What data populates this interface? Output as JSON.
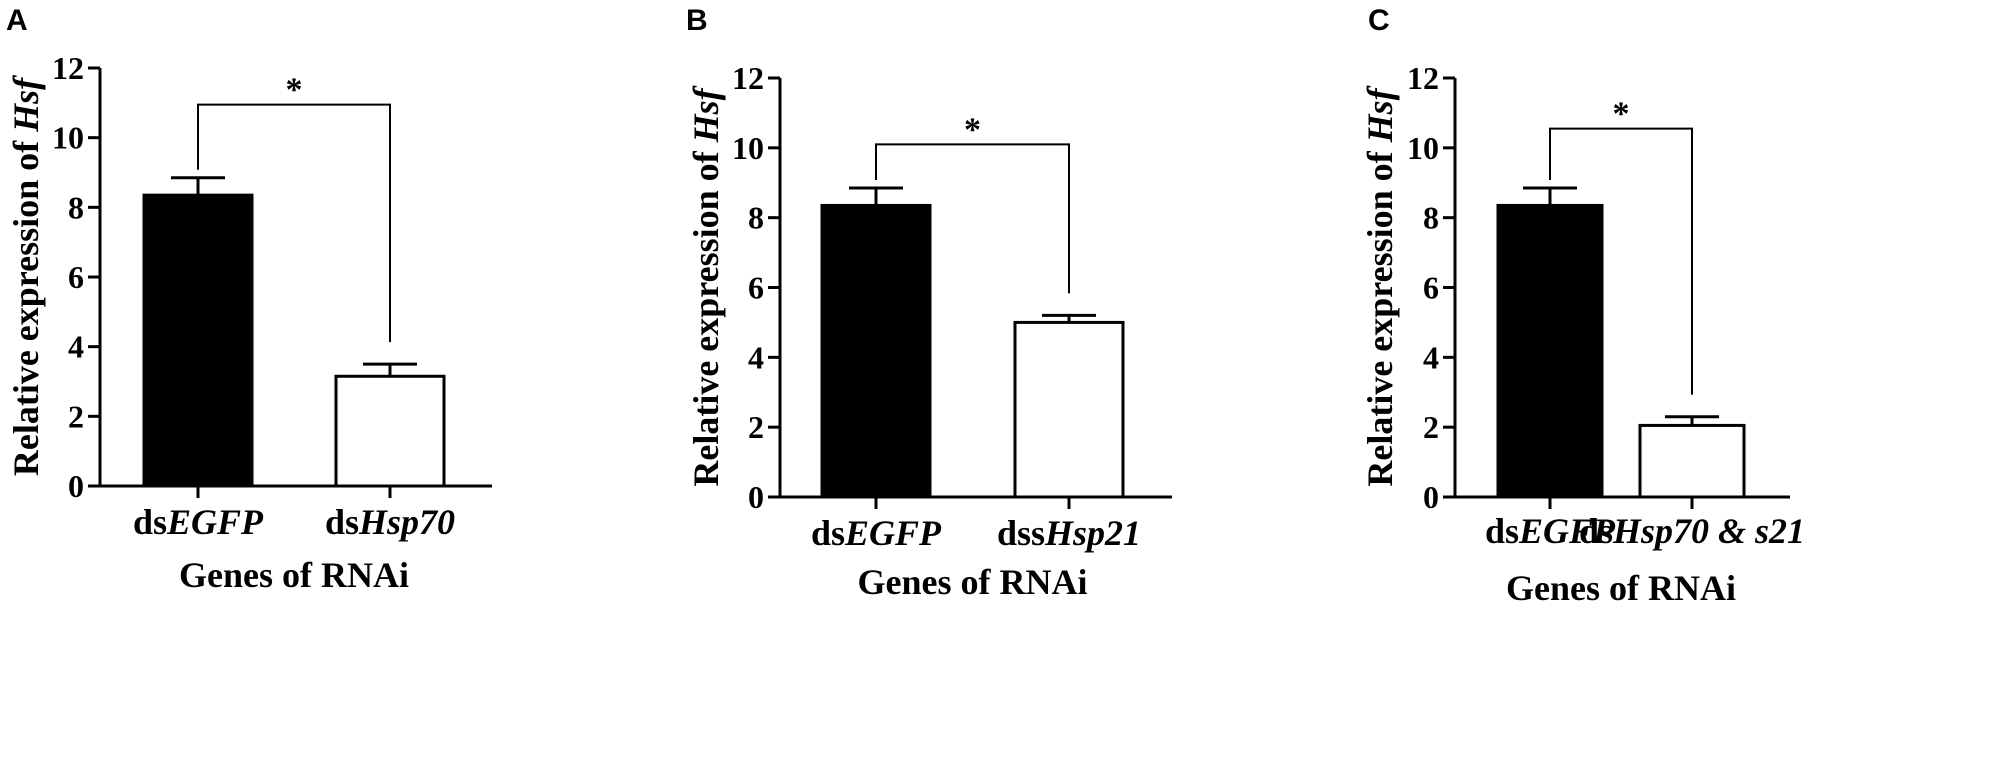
{
  "chart_data": [
    {
      "panel": "A",
      "type": "bar",
      "ylabel_prefix": "Relative expression of ",
      "ylabel_gene": "Hsf",
      "xlabel": "Genes of RNAi",
      "ylim": [
        0,
        12
      ],
      "yticks": [
        0,
        2,
        4,
        6,
        8,
        10,
        12
      ],
      "categories": [
        {
          "prefix": "ds",
          "gene": "EGFP"
        },
        {
          "prefix": "ds",
          "gene": "Hsp70"
        }
      ],
      "values": [
        8.35,
        3.15
      ],
      "errors": [
        0.5,
        0.35
      ],
      "bar_colors": [
        "#000000",
        "#ffffff"
      ],
      "significance": {
        "label": "*",
        "y": 10.95
      }
    },
    {
      "panel": "B",
      "type": "bar",
      "ylabel_prefix": "Relative expression of ",
      "ylabel_gene": "Hsf",
      "xlabel": "Genes of RNAi",
      "ylim": [
        0,
        12
      ],
      "yticks": [
        0,
        2,
        4,
        6,
        8,
        10,
        12
      ],
      "categories": [
        {
          "prefix": "ds",
          "gene": "EGFP"
        },
        {
          "prefix": "dss",
          "gene": "Hsp21"
        }
      ],
      "values": [
        8.35,
        5.0
      ],
      "errors": [
        0.5,
        0.2
      ],
      "bar_colors": [
        "#000000",
        "#ffffff"
      ],
      "significance": {
        "label": "*",
        "y": 10.1
      }
    },
    {
      "panel": "C",
      "type": "bar",
      "ylabel_prefix": "Relative expression of ",
      "ylabel_gene": "Hsf",
      "xlabel": "Genes of RNAi",
      "ylim": [
        0,
        12
      ],
      "yticks": [
        0,
        2,
        4,
        6,
        8,
        10,
        12
      ],
      "categories": [
        {
          "prefix": "ds",
          "gene": "EGFP"
        },
        {
          "prefix": "ds",
          "gene": "Hsp70 & s21"
        }
      ],
      "values": [
        8.35,
        2.05
      ],
      "errors": [
        0.5,
        0.25
      ],
      "bar_colors": [
        "#000000",
        "#ffffff"
      ],
      "significance": {
        "label": "*",
        "y": 10.55
      }
    }
  ]
}
